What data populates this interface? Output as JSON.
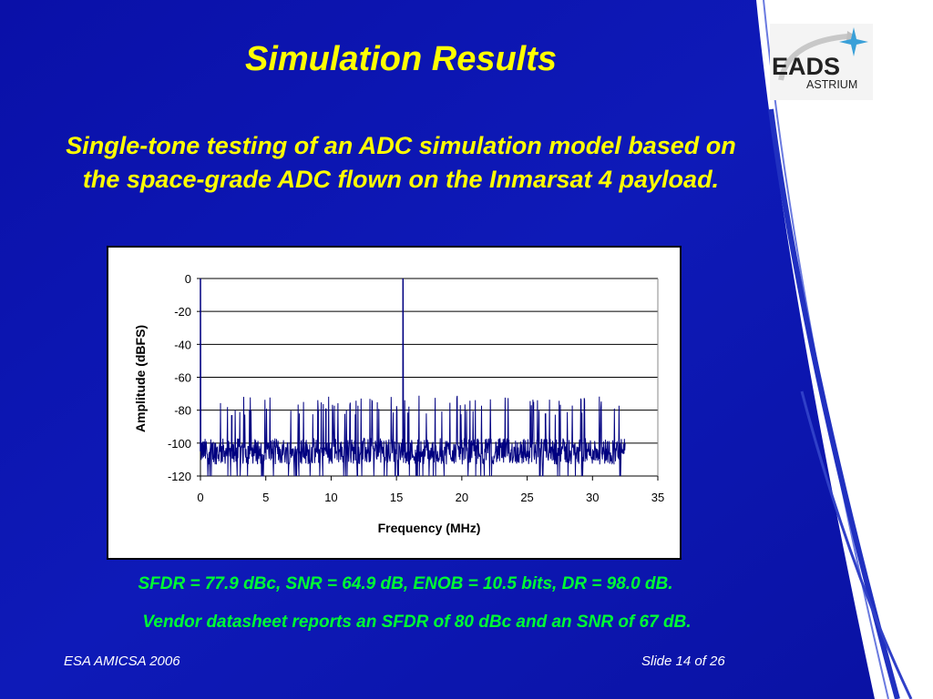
{
  "slide": {
    "title": "Simulation Results",
    "subtitle": "Single-tone testing of an ADC simulation model based on the space-grade ADC flown on the Inmarsat 4 payload.",
    "results_line": "SFDR = 77.9 dBc, SNR = 64.9 dB, ENOB = 10.5 bits, DR = 98.0 dB.",
    "vendor_line": "Vendor datasheet reports an SFDR of 80 dBc and an SNR of 67 dB.",
    "footer_left": "ESA AMICSA 2006",
    "footer_right": "Slide 14 of 26",
    "logo_text": "EADS ASTRIUM",
    "colors": {
      "background": "#0a14b4",
      "title": "#ffff00",
      "highlight": "#00ff33",
      "trace": "#000080"
    }
  },
  "chart_data": {
    "type": "line",
    "title": "",
    "xlabel": "Frequency (MHz)",
    "ylabel": "Amplitude (dBFS)",
    "xlim": [
      0,
      35
    ],
    "ylim": [
      -120,
      0
    ],
    "xticks": [
      "0",
      "5",
      "10",
      "15",
      "20",
      "25",
      "30",
      "35"
    ],
    "yticks": [
      "0",
      "-20",
      "-40",
      "-60",
      "-80",
      "-100",
      "-120"
    ],
    "grid": "horizontal",
    "legend": "none",
    "series": [
      {
        "x_range": [
          0,
          32.5
        ],
        "noise_floor_db": -105,
        "noise_spread_db": [
          -120,
          -83
        ],
        "peaks": [
          {
            "x": 0.0,
            "y": 0
          },
          {
            "x": 15.5,
            "y": 0
          },
          {
            "x": 9.0,
            "y": -80
          },
          {
            "x": 9.6,
            "y": -79
          },
          {
            "x": 26.4,
            "y": -82
          },
          {
            "x": 2.4,
            "y": -83
          }
        ]
      }
    ]
  }
}
